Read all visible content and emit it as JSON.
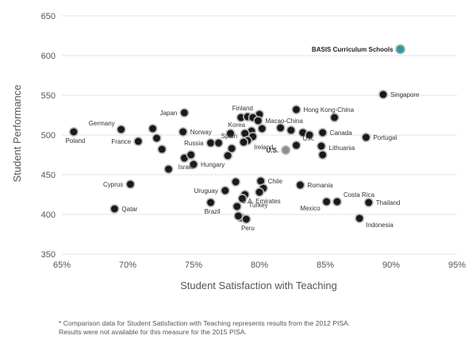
{
  "colors": {
    "point": "#1a1a1a",
    "point_ring": "#b9b9b9",
    "us_point": "#8d8d8d",
    "basis_point": "#2a9ba3",
    "grid": "#e3e3e3",
    "text": "#555555"
  },
  "chart_data": {
    "type": "scatter",
    "xlabel": "Student Satisfaction with Teaching",
    "ylabel": "Student Performance",
    "xlim": [
      65,
      95
    ],
    "ylim": [
      350,
      650
    ],
    "xticks": [
      65,
      70,
      75,
      80,
      85,
      90,
      95
    ],
    "xtick_labels": [
      "65%",
      "70%",
      "75%",
      "80%",
      "85%",
      "90%",
      "95%"
    ],
    "yticks": [
      350,
      400,
      450,
      500,
      550,
      600,
      650
    ],
    "ytick_labels": [
      "350",
      "400",
      "450",
      "500",
      "550",
      "600",
      "650"
    ],
    "grid": "horizontal",
    "points": [
      {
        "x": 90.7,
        "y": 608,
        "label": "BASIS Curriculum Schools",
        "kind": "basis",
        "label_pos": "left"
      },
      {
        "x": 89.4,
        "y": 551,
        "label": "Singapore",
        "label_pos": "right"
      },
      {
        "x": 82.8,
        "y": 532,
        "label": "Hong Kong-China",
        "label_pos": "right"
      },
      {
        "x": 74.3,
        "y": 528,
        "label": "Japan",
        "label_pos": "left"
      },
      {
        "x": 80.0,
        "y": 526,
        "label": "Finland",
        "label_pos": "left-up"
      },
      {
        "x": 78.6,
        "y": 522
      },
      {
        "x": 79.1,
        "y": 523
      },
      {
        "x": 79.5,
        "y": 522
      },
      {
        "x": 79.9,
        "y": 518,
        "label": "Macao-China",
        "label_pos": "right"
      },
      {
        "x": 85.7,
        "y": 522
      },
      {
        "x": 80.2,
        "y": 508
      },
      {
        "x": 79.4,
        "y": 505,
        "label": "Korea",
        "label_pos": "left-up"
      },
      {
        "x": 78.9,
        "y": 502
      },
      {
        "x": 79.5,
        "y": 498
      },
      {
        "x": 79.1,
        "y": 493,
        "label": "Ireland",
        "label_pos": "right-down"
      },
      {
        "x": 77.8,
        "y": 502
      },
      {
        "x": 81.6,
        "y": 509
      },
      {
        "x": 82.4,
        "y": 506
      },
      {
        "x": 83.3,
        "y": 503
      },
      {
        "x": 83.8,
        "y": 500
      },
      {
        "x": 84.8,
        "y": 503,
        "label": "Canada",
        "label_pos": "right"
      },
      {
        "x": 82.8,
        "y": 487,
        "label": "U.K.",
        "label_pos": "right-up"
      },
      {
        "x": 82.0,
        "y": 481,
        "label": "U.S.",
        "kind": "us",
        "label_pos": "left-bold"
      },
      {
        "x": 84.7,
        "y": 486
      },
      {
        "x": 84.8,
        "y": 475,
        "label": "Lithuania",
        "label_pos": "right-up"
      },
      {
        "x": 88.1,
        "y": 497,
        "label": "Portugal",
        "label_pos": "right"
      },
      {
        "x": 69.5,
        "y": 507,
        "label": "Germany",
        "label_pos": "left-up"
      },
      {
        "x": 71.9,
        "y": 508
      },
      {
        "x": 72.2,
        "y": 496
      },
      {
        "x": 70.8,
        "y": 492,
        "label": "France",
        "label_pos": "left"
      },
      {
        "x": 72.6,
        "y": 482
      },
      {
        "x": 65.9,
        "y": 504,
        "label": "Poland",
        "label_pos": "below"
      },
      {
        "x": 74.2,
        "y": 504,
        "label": "Norway",
        "label_pos": "right"
      },
      {
        "x": 76.3,
        "y": 490,
        "label": "Russia",
        "label_pos": "left"
      },
      {
        "x": 76.9,
        "y": 490
      },
      {
        "x": 77.9,
        "y": 483
      },
      {
        "x": 77.6,
        "y": 474
      },
      {
        "x": 78.8,
        "y": 491,
        "label": "Spain",
        "label_pos": "left-up"
      },
      {
        "x": 74.3,
        "y": 471,
        "label": "Israel",
        "label_pos": "below"
      },
      {
        "x": 74.8,
        "y": 475
      },
      {
        "x": 75.0,
        "y": 463,
        "label": "Hungary",
        "label_pos": "right"
      },
      {
        "x": 73.1,
        "y": 457
      },
      {
        "x": 70.2,
        "y": 438,
        "label": "Cyprus",
        "label_pos": "left"
      },
      {
        "x": 78.2,
        "y": 441
      },
      {
        "x": 80.1,
        "y": 442,
        "label": "Chile",
        "label_pos": "right"
      },
      {
        "x": 80.3,
        "y": 433
      },
      {
        "x": 83.1,
        "y": 437,
        "label": "Romania",
        "label_pos": "right"
      },
      {
        "x": 80.0,
        "y": 428,
        "label": "U.A. Emirates",
        "label_pos": "below"
      },
      {
        "x": 77.4,
        "y": 430,
        "label": "Uruguay",
        "label_pos": "left"
      },
      {
        "x": 78.9,
        "y": 425
      },
      {
        "x": 78.7,
        "y": 420,
        "label": "Turkey",
        "label_pos": "right-down"
      },
      {
        "x": 78.3,
        "y": 410
      },
      {
        "x": 76.3,
        "y": 415,
        "label": "Brazil",
        "label_pos": "below"
      },
      {
        "x": 78.6,
        "y": 396
      },
      {
        "x": 79.0,
        "y": 394,
        "label": "Peru",
        "label_pos": "below"
      },
      {
        "x": 78.4,
        "y": 398
      },
      {
        "x": 85.9,
        "y": 416,
        "label": "Costa Rica",
        "label_pos": "right-up"
      },
      {
        "x": 85.1,
        "y": 416,
        "label": "Mexico",
        "label_pos": "left-down"
      },
      {
        "x": 88.3,
        "y": 415,
        "label": "Thailand",
        "label_pos": "right"
      },
      {
        "x": 87.6,
        "y": 395,
        "label": "Indonesia",
        "label_pos": "right-down"
      },
      {
        "x": 69.0,
        "y": 407,
        "label": "Qatar",
        "label_pos": "right"
      }
    ]
  },
  "footnote": "* Comparison data for Student Satisfaction with Teaching represents results from the 2012 PISA.\n  Results were not available for this measure for the 2015 PISA."
}
